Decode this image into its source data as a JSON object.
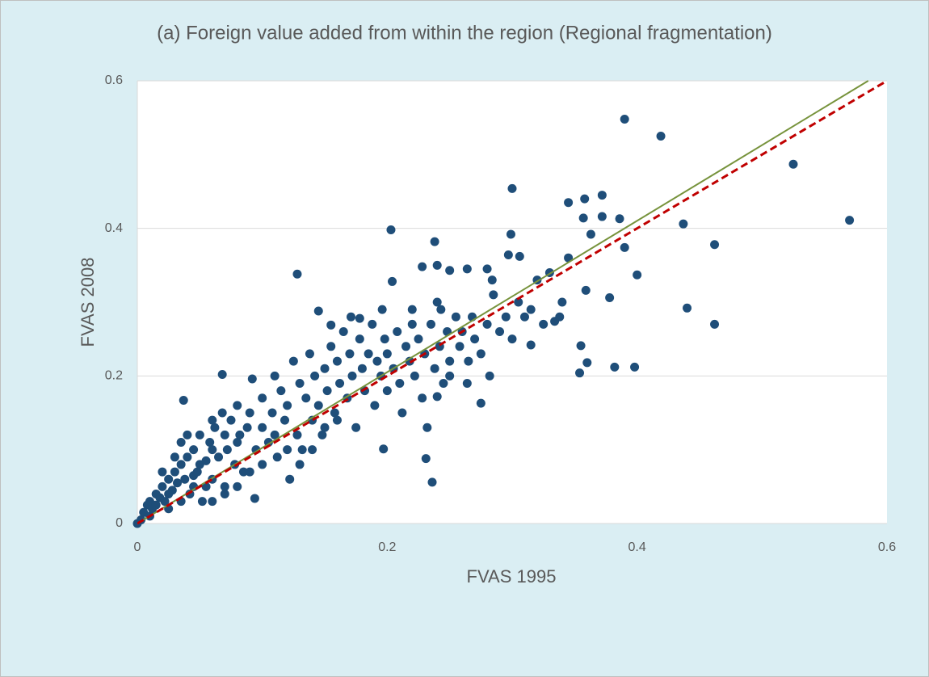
{
  "chart_data": {
    "type": "scatter",
    "title": "(a) Foreign value added from within the region (Regional fragmentation)",
    "x_label": "FVAS 1995",
    "y_label": "FVAS 2008",
    "xlim": [
      0,
      0.6
    ],
    "ylim": [
      0,
      0.6
    ],
    "xticks": [
      0,
      0.2,
      0.4,
      0.6
    ],
    "yticks": [
      0,
      0.2,
      0.4,
      0.6
    ],
    "grid": true,
    "series": [
      {
        "color": "#1f4e79",
        "x": [
          0,
          0.003,
          0.005,
          0.008,
          0.01,
          0.01,
          0.012,
          0.015,
          0.015,
          0.018,
          0.02,
          0.02,
          0.022,
          0.025,
          0.025,
          0.025,
          0.028,
          0.03,
          0.03,
          0.032,
          0.035,
          0.035,
          0.035,
          0.037,
          0.038,
          0.04,
          0.04,
          0.042,
          0.045,
          0.045,
          0.045,
          0.048,
          0.05,
          0.05,
          0.052,
          0.055,
          0.055,
          0.058,
          0.06,
          0.06,
          0.06,
          0.06,
          0.062,
          0.065,
          0.068,
          0.068,
          0.07,
          0.07,
          0.07,
          0.072,
          0.075,
          0.078,
          0.08,
          0.08,
          0.08,
          0.082,
          0.085,
          0.088,
          0.09,
          0.09,
          0.092,
          0.094,
          0.095,
          0.1,
          0.1,
          0.1,
          0.105,
          0.108,
          0.11,
          0.11,
          0.112,
          0.115,
          0.118,
          0.12,
          0.12,
          0.122,
          0.125,
          0.128,
          0.128,
          0.13,
          0.13,
          0.132,
          0.135,
          0.138,
          0.14,
          0.14,
          0.142,
          0.145,
          0.145,
          0.148,
          0.15,
          0.15,
          0.152,
          0.155,
          0.155,
          0.158,
          0.16,
          0.16,
          0.162,
          0.165,
          0.168,
          0.17,
          0.171,
          0.172,
          0.175,
          0.178,
          0.178,
          0.18,
          0.182,
          0.185,
          0.188,
          0.19,
          0.192,
          0.195,
          0.196,
          0.197,
          0.198,
          0.2,
          0.2,
          0.203,
          0.204,
          0.205,
          0.208,
          0.21,
          0.212,
          0.215,
          0.218,
          0.22,
          0.22,
          0.222,
          0.225,
          0.228,
          0.228,
          0.23,
          0.231,
          0.232,
          0.235,
          0.236,
          0.238,
          0.238,
          0.24,
          0.24,
          0.24,
          0.242,
          0.243,
          0.245,
          0.248,
          0.25,
          0.25,
          0.25,
          0.255,
          0.258,
          0.26,
          0.264,
          0.264,
          0.265,
          0.268,
          0.27,
          0.275,
          0.275,
          0.28,
          0.28,
          0.282,
          0.284,
          0.285,
          0.29,
          0.295,
          0.297,
          0.299,
          0.3,
          0.3,
          0.305,
          0.306,
          0.31,
          0.315,
          0.315,
          0.32,
          0.325,
          0.33,
          0.334,
          0.338,
          0.34,
          0.345,
          0.345,
          0.354,
          0.355,
          0.357,
          0.358,
          0.359,
          0.36,
          0.363,
          0.372,
          0.372,
          0.378,
          0.382,
          0.386,
          0.39,
          0.39,
          0.398,
          0.4,
          0.419,
          0.437,
          0.44,
          0.462,
          0.462,
          0.525,
          0.57
        ],
        "values": [
          0,
          0.005,
          0.015,
          0.025,
          0.01,
          0.03,
          0.02,
          0.04,
          0.025,
          0.035,
          0.05,
          0.07,
          0.03,
          0.06,
          0.02,
          0.04,
          0.045,
          0.07,
          0.09,
          0.055,
          0.08,
          0.03,
          0.11,
          0.167,
          0.06,
          0.09,
          0.12,
          0.04,
          0.1,
          0.05,
          0.065,
          0.07,
          0.12,
          0.08,
          0.03,
          0.085,
          0.05,
          0.11,
          0.06,
          0.1,
          0.14,
          0.03,
          0.13,
          0.09,
          0.15,
          0.202,
          0.05,
          0.12,
          0.04,
          0.1,
          0.14,
          0.08,
          0.16,
          0.11,
          0.05,
          0.12,
          0.07,
          0.13,
          0.15,
          0.07,
          0.196,
          0.034,
          0.1,
          0.17,
          0.13,
          0.08,
          0.11,
          0.15,
          0.2,
          0.12,
          0.09,
          0.18,
          0.14,
          0.16,
          0.1,
          0.06,
          0.22,
          0.12,
          0.338,
          0.19,
          0.08,
          0.1,
          0.17,
          0.23,
          0.14,
          0.1,
          0.2,
          0.16,
          0.288,
          0.12,
          0.21,
          0.13,
          0.18,
          0.24,
          0.269,
          0.15,
          0.22,
          0.14,
          0.19,
          0.26,
          0.17,
          0.23,
          0.28,
          0.2,
          0.13,
          0.25,
          0.278,
          0.21,
          0.18,
          0.23,
          0.27,
          0.16,
          0.22,
          0.2,
          0.29,
          0.101,
          0.25,
          0.18,
          0.23,
          0.398,
          0.328,
          0.21,
          0.26,
          0.19,
          0.15,
          0.24,
          0.22,
          0.27,
          0.29,
          0.2,
          0.25,
          0.17,
          0.348,
          0.23,
          0.088,
          0.13,
          0.27,
          0.056,
          0.21,
          0.382,
          0.3,
          0.172,
          0.35,
          0.24,
          0.29,
          0.19,
          0.26,
          0.22,
          0.343,
          0.2,
          0.28,
          0.24,
          0.26,
          0.345,
          0.19,
          0.22,
          0.28,
          0.25,
          0.163,
          0.23,
          0.27,
          0.345,
          0.2,
          0.33,
          0.31,
          0.26,
          0.28,
          0.364,
          0.392,
          0.25,
          0.454,
          0.3,
          0.362,
          0.28,
          0.29,
          0.242,
          0.33,
          0.27,
          0.34,
          0.274,
          0.28,
          0.3,
          0.36,
          0.435,
          0.204,
          0.241,
          0.414,
          0.44,
          0.316,
          0.218,
          0.392,
          0.445,
          0.416,
          0.306,
          0.212,
          0.413,
          0.374,
          0.548,
          0.212,
          0.337,
          0.525,
          0.406,
          0.292,
          0.378,
          0.27,
          0.487,
          0.411
        ]
      },
      {
        "type": "line",
        "color": "#77933c",
        "x": [
          0,
          0.585
        ],
        "values": [
          0,
          0.6
        ]
      },
      {
        "type": "line",
        "color": "#c00000",
        "dashed": true,
        "x": [
          0,
          0.6
        ],
        "values": [
          0,
          0.6
        ]
      }
    ]
  }
}
